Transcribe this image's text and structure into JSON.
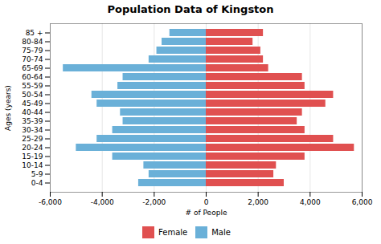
{
  "chart_data": {
    "type": "bar",
    "orientation": "horizontal",
    "title": "Population Data of Kingston",
    "xlabel": "# of People",
    "ylabel": "Ages (years)",
    "categories": [
      "0-4",
      "5-9",
      "10-14",
      "15-19",
      "20-24",
      "25-29",
      "30-34",
      "35-39",
      "40-44",
      "45-49",
      "50-54",
      "55-59",
      "60-64",
      "65-69",
      "70-74",
      "75-79",
      "80-84",
      "85 +"
    ],
    "series": [
      {
        "name": "Female",
        "color": "#e05050",
        "values": [
          3000,
          2600,
          2700,
          3800,
          5700,
          4900,
          3800,
          3500,
          3700,
          4600,
          4900,
          3800,
          3700,
          2400,
          2200,
          2100,
          1800,
          2200
        ]
      },
      {
        "name": "Male",
        "color": "#6ab0d8",
        "values": [
          -2600,
          -2200,
          -2400,
          -3600,
          -5000,
          -4200,
          -3600,
          -3200,
          -3300,
          -4200,
          -4400,
          -3400,
          -3200,
          -5500,
          -2200,
          -1900,
          -1700,
          -1400
        ]
      }
    ],
    "xlim": [
      -6000,
      6000
    ],
    "xticks": [
      {
        "value": -6000,
        "label": "-6,000"
      },
      {
        "value": -4000,
        "label": "-4,000"
      },
      {
        "value": -2000,
        "label": "-2,000"
      },
      0,
      {
        "value": 2000,
        "label": "2,000"
      },
      {
        "value": 4000,
        "label": "4,000"
      },
      {
        "value": 6000,
        "label": "6,000"
      }
    ],
    "grid": true,
    "legend": "bottom"
  }
}
